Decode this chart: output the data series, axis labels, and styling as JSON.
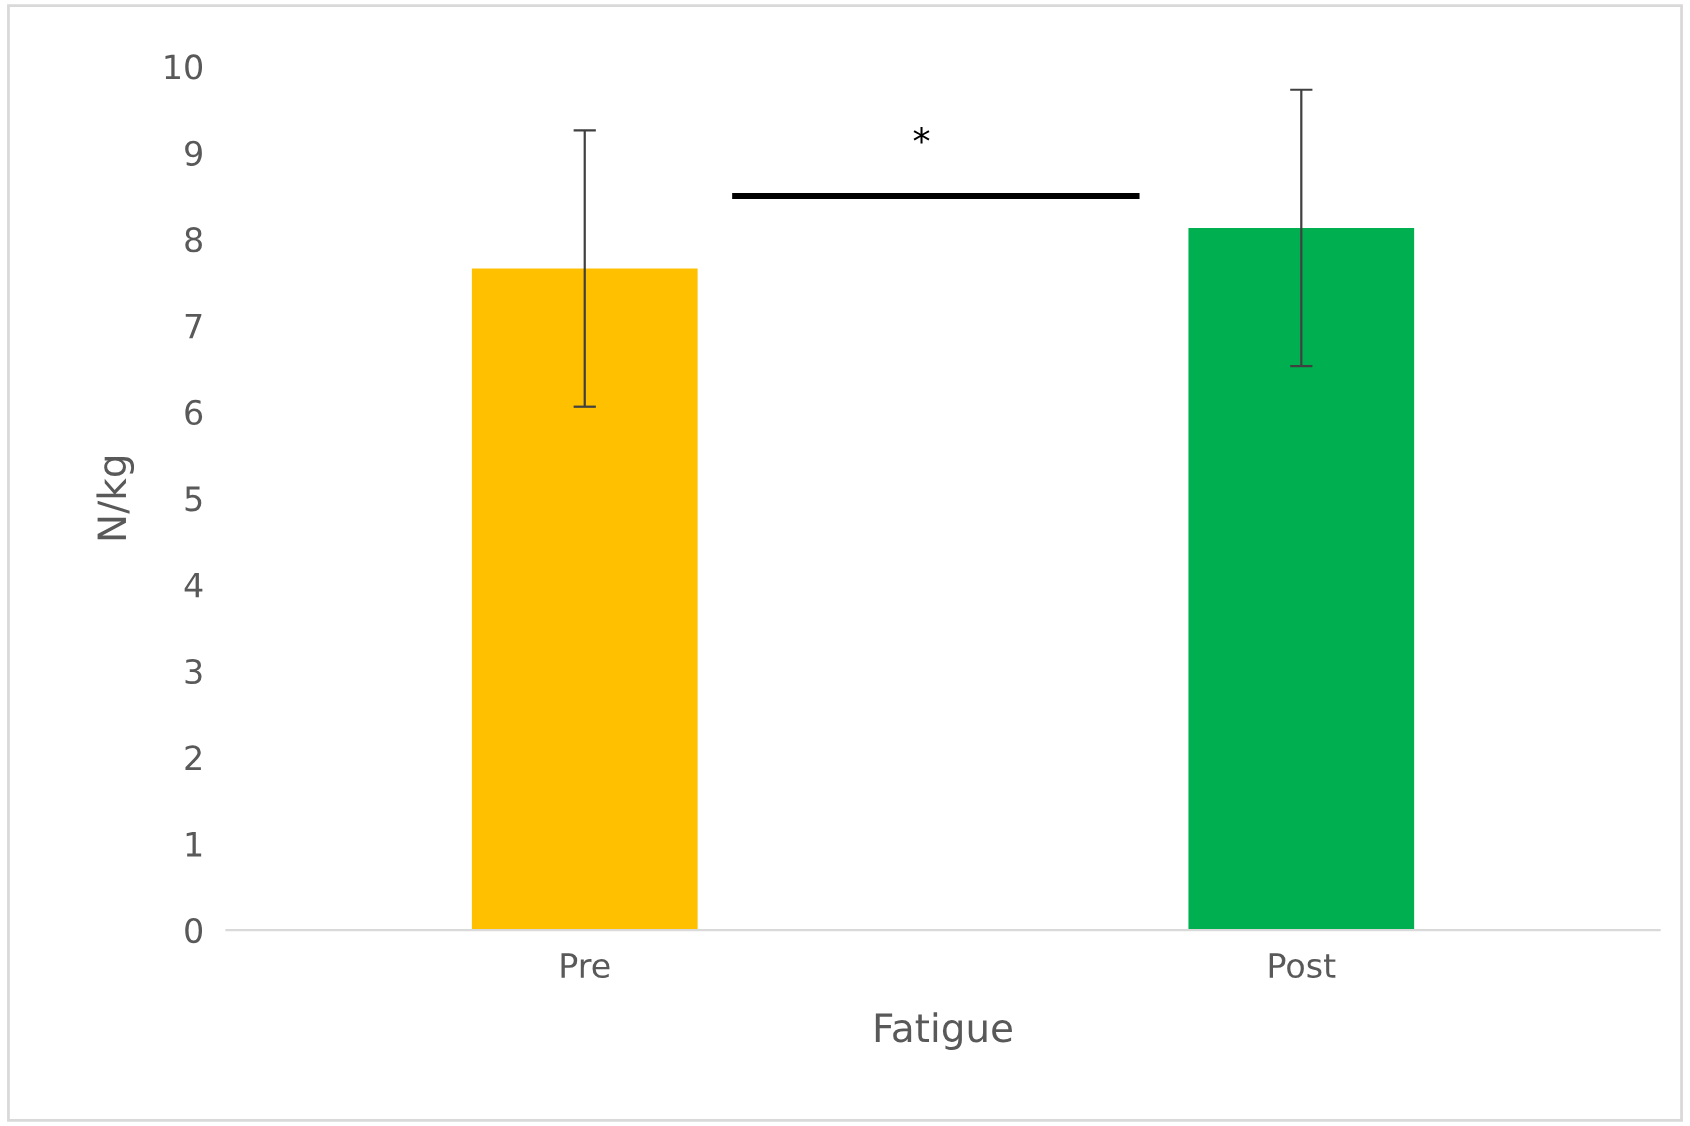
{
  "chart_data": {
    "type": "bar",
    "xlabel": "Fatigue",
    "ylabel": "N/kg",
    "categories": [
      "Pre",
      "Post"
    ],
    "values": [
      7.66,
      8.13
    ],
    "colors": [
      "#ffc000",
      "#00b050"
    ],
    "errors": [
      1.6,
      1.6
    ],
    "ylim": [
      0,
      10
    ],
    "yticks": [
      0,
      1,
      2,
      3,
      4,
      5,
      6,
      7,
      8,
      9,
      10
    ],
    "grid": false,
    "annotations": [
      "*"
    ]
  }
}
